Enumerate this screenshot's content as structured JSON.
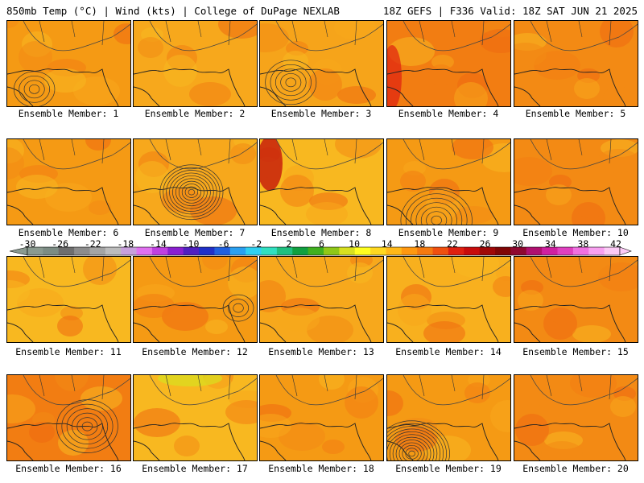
{
  "header": {
    "left": "850mb Temp (°C) | Wind (kts) | College of DuPage NEXLAB",
    "right": "18Z GEFS | F336 Valid: 18Z SAT JUN 21 2025"
  },
  "panels": [
    {
      "label": "Ensemble Member: 1",
      "low": [
        0.22,
        0.8
      ],
      "rings": 4,
      "tint": "#f59a14"
    },
    {
      "label": "Ensemble Member: 2",
      "low": null,
      "rings": 0,
      "tint": "#f7a81c"
    },
    {
      "label": "Ensemble Member: 3",
      "low": [
        0.25,
        0.72
      ],
      "rings": 5,
      "tint": "#f6a41a"
    },
    {
      "label": "Ensemble Member: 4",
      "low": null,
      "rings": 0,
      "tint": "#f27d12"
    },
    {
      "label": "Ensemble Member: 5",
      "low": null,
      "rings": 0,
      "tint": "#f38a14"
    },
    {
      "label": "Ensemble Member: 6",
      "low": null,
      "rings": 0,
      "tint": "#f59a14"
    },
    {
      "label": "Ensemble Member: 7",
      "low": [
        0.47,
        0.62
      ],
      "rings": 10,
      "tint": "#f7a81c"
    },
    {
      "label": "Ensemble Member: 8",
      "low": null,
      "rings": 0,
      "tint": "#f8b820"
    },
    {
      "label": "Ensemble Member: 9",
      "low": [
        0.4,
        0.95
      ],
      "rings": 7,
      "tint": "#f59a14"
    },
    {
      "label": "Ensemble Member: 10",
      "low": null,
      "rings": 0,
      "tint": "#f38a14"
    },
    {
      "label": "Ensemble Member: 11",
      "low": null,
      "rings": 0,
      "tint": "#f8b820"
    },
    {
      "label": "Ensemble Member: 12",
      "low": [
        0.85,
        0.6
      ],
      "rings": 3,
      "tint": "#f59a14"
    },
    {
      "label": "Ensemble Member: 13",
      "low": null,
      "rings": 0,
      "tint": "#f7a81c"
    },
    {
      "label": "Ensemble Member: 14",
      "low": null,
      "rings": 0,
      "tint": "#f8b01e"
    },
    {
      "label": "Ensemble Member: 15",
      "low": null,
      "rings": 0,
      "tint": "#f38a14"
    },
    {
      "label": "Ensemble Member: 16",
      "low": [
        0.65,
        0.6
      ],
      "rings": 6,
      "tint": "#f27d12"
    },
    {
      "label": "Ensemble Member: 17",
      "low": null,
      "rings": 0,
      "tint": "#f8b820"
    },
    {
      "label": "Ensemble Member: 18",
      "low": null,
      "rings": 0,
      "tint": "#f59a14"
    },
    {
      "label": "Ensemble Member: 19",
      "low": [
        0.2,
        0.92
      ],
      "rings": 12,
      "tint": "#f59a14"
    },
    {
      "label": "Ensemble Member: 20",
      "low": null,
      "rings": 0,
      "tint": "#f38a14"
    }
  ],
  "colorbar": {
    "ticks": [
      "-30",
      "-26",
      "-22",
      "-18",
      "-14",
      "-10",
      "-6",
      "-2",
      "2",
      "6",
      "10",
      "14",
      "18",
      "22",
      "26",
      "30",
      "34",
      "38",
      "42"
    ],
    "colors": [
      "#8a9a90",
      "#7c8c84",
      "#6e6e6e",
      "#8c8c8c",
      "#a4a4a4",
      "#bcbcbc",
      "#c8a0dc",
      "#e070f0",
      "#c040e0",
      "#8a20d0",
      "#5020c0",
      "#2030c8",
      "#2060e0",
      "#2aa0f0",
      "#30d0f0",
      "#30e0c0",
      "#20c080",
      "#10a040",
      "#40b020",
      "#90c818",
      "#d8e020",
      "#ffff20",
      "#ffd820",
      "#ffb818",
      "#ff9810",
      "#f57a10",
      "#f05010",
      "#e02010",
      "#c80c0c",
      "#a00808",
      "#800606",
      "#900830",
      "#b01070",
      "#d020a0",
      "#e040c0",
      "#f070e0",
      "#f8a0f0",
      "#fccaf6"
    ]
  }
}
